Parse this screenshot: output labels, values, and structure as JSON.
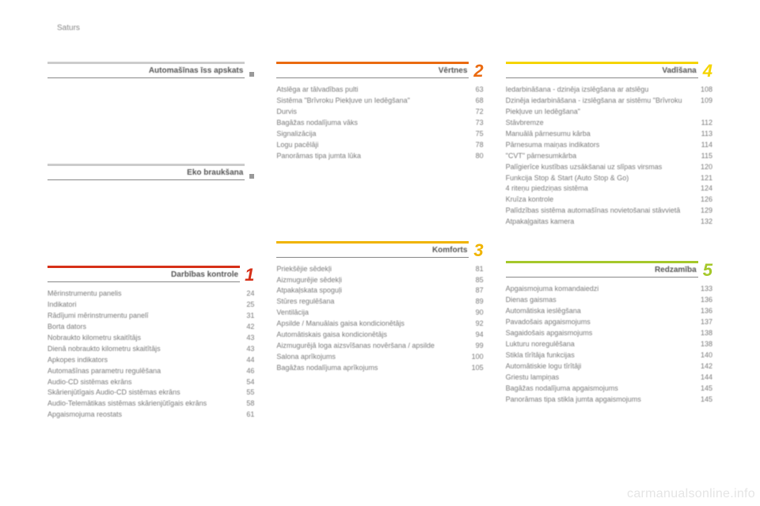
{
  "page_label": "Saturs",
  "watermark": "carmanualsonline.info",
  "columns": [
    {
      "sections": [
        {
          "title": "Automašīnas īss apskats",
          "color": "#cccccc",
          "num": null,
          "grey_dot": true,
          "num_color": null,
          "entries": [],
          "spacer_after": true
        },
        {
          "title": "Eko braukšana",
          "color": "#cccccc",
          "num": null,
          "grey_dot": true,
          "num_color": null,
          "entries": [],
          "spacer_after": true
        },
        {
          "title": "Darbības kontrole",
          "color": "#d63018",
          "num": "1",
          "grey_dot": false,
          "num_color": "#d63018",
          "entries": [
            {
              "label": "Mērinstrumentu panelis",
              "page": "24"
            },
            {
              "label": "Indikatori",
              "page": "25"
            },
            {
              "label": "Rādījumi mērinstrumentu panelī",
              "page": "31"
            },
            {
              "label": "Borta dators",
              "page": "42"
            },
            {
              "label": "Nobraukto kilometru skaitītājs",
              "page": "43"
            },
            {
              "label": "Dienā nobraukto kilometru skaitītājs",
              "page": "43"
            },
            {
              "label": "Apkopes indikators",
              "page": "44"
            },
            {
              "label": "Automašīnas parametru regulēšana",
              "page": "46"
            },
            {
              "label": "Audio-CD sistēmas ekrāns",
              "page": "54"
            },
            {
              "label": "Skārienjūtīgais Audio-CD sistēmas ekrāns",
              "page": "55"
            },
            {
              "label": "Audio-Telemātikas sistēmas skārienjūtīgais ekrāns",
              "page": "58"
            },
            {
              "label": "Apgaismojuma reostats",
              "page": "61"
            }
          ]
        }
      ]
    },
    {
      "sections": [
        {
          "title": "Vērtnes",
          "color": "#ea6a10",
          "num": "2",
          "grey_dot": false,
          "num_color": "#ea6a10",
          "entries": [
            {
              "label": "Atslēga ar tālvadības pulti",
              "page": "63"
            },
            {
              "label": "Sistēma \"Brīvroku Piekļuve un Iedēgšana\"",
              "page": "68"
            },
            {
              "label": "Durvis",
              "page": "72"
            },
            {
              "label": "Bagāžas nodalījuma vāks",
              "page": "73"
            },
            {
              "label": "Signalizācija",
              "page": "75"
            },
            {
              "label": "Logu pacēlāji",
              "page": "78"
            },
            {
              "label": "Panorāmas tipa jumta lūka",
              "page": "80"
            }
          ],
          "spacer_after": true
        },
        {
          "title": "Komforts",
          "color": "#f0b400",
          "num": "3",
          "grey_dot": false,
          "num_color": "#f0b400",
          "entries": [
            {
              "label": "Priekšējie sēdekļi",
              "page": "81"
            },
            {
              "label": "Aizmugurējie sēdekļi",
              "page": "85"
            },
            {
              "label": "Atpakaļskata spoguļi",
              "page": "87"
            },
            {
              "label": "Stūres regulēšana",
              "page": "89"
            },
            {
              "label": "Ventilācija",
              "page": "90"
            },
            {
              "label": "Apsilde / Manuālais gaisa kondicionētājs",
              "page": "92"
            },
            {
              "label": "Automātiskais gaisa kondicionētājs",
              "page": "94"
            },
            {
              "label": "Aizmugurējā loga aizsvīšanas novēršana / apsilde",
              "page": "99"
            },
            {
              "label": "Salona aprīkojums",
              "page": "100"
            },
            {
              "label": "Bagāžas nodalījuma aprīkojums",
              "page": "105"
            }
          ]
        }
      ]
    },
    {
      "sections": [
        {
          "title": "Vadīšana",
          "color": "#f5d400",
          "num": "4",
          "grey_dot": false,
          "num_color": "#f5d400",
          "entries": [
            {
              "label": "Iedarbināšana - dzinēja izslēgšana ar atslēgu",
              "page": "108"
            },
            {
              "label": "Dzinēja iedarbināšana - izslēgšana ar sistēmu \"Brīvroku Piekļuve un Iedēgšana\"",
              "page": "109"
            },
            {
              "label": "Stāvbremze",
              "page": "112"
            },
            {
              "label": "Manuālā pārnesumu kārba",
              "page": "113"
            },
            {
              "label": "Pārnesuma maiņas indikators",
              "page": "114"
            },
            {
              "label": "\"CVT\" pārnesumkārba",
              "page": "115"
            },
            {
              "label": "Palīgierīce kustības uzsākšanai uz slīpas virsmas",
              "page": "120"
            },
            {
              "label": "Funkcija Stop & Start (Auto Stop & Go)",
              "page": "121"
            },
            {
              "label": "4 riteņu piedziņas sistēma",
              "page": "124"
            },
            {
              "label": "Kruīza kontrole",
              "page": "126"
            },
            {
              "label": "Palīdzības sistēma automašīnas novietošanai stāvvietā",
              "page": "129"
            },
            {
              "label": "Atpakaļgaitas kamera",
              "page": "132"
            }
          ],
          "spacer_after": false
        },
        {
          "title": "Redzamība",
          "color": "#a5c82a",
          "num": "5",
          "grey_dot": false,
          "num_color": "#a5c82a",
          "top_gap": true,
          "entries": [
            {
              "label": "Apgaismojuma komandaiedzi",
              "page": "133"
            },
            {
              "label": "Dienas gaismas",
              "page": "136"
            },
            {
              "label": "Automātiska ieslēgšana",
              "page": "136"
            },
            {
              "label": "Pavadošais apgaismojums",
              "page": "137"
            },
            {
              "label": "Sagaidošais apgaismojums",
              "page": "138"
            },
            {
              "label": "Lukturu noregulēšana",
              "page": "138"
            },
            {
              "label": "Stikla tīrītāja funkcijas",
              "page": "140"
            },
            {
              "label": "Automātiskie logu tīrītāji",
              "page": "142"
            },
            {
              "label": "Griestu lampiņas",
              "page": "144"
            },
            {
              "label": "Bagāžas nodalījuma apgaismojums",
              "page": "145"
            },
            {
              "label": "Panorāmas tipa stikla jumta apgaismojums",
              "page": "145"
            }
          ]
        }
      ]
    }
  ]
}
